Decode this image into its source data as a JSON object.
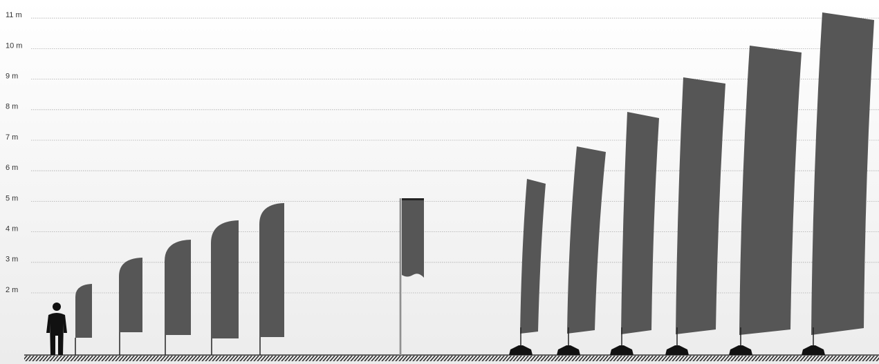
{
  "scale": {
    "ticks": [
      {
        "value": 2,
        "label": "2 m"
      },
      {
        "value": 3,
        "label": "3 m"
      },
      {
        "value": 4,
        "label": "4 m"
      },
      {
        "value": 5,
        "label": "5 m"
      },
      {
        "value": 6,
        "label": "6 m"
      },
      {
        "value": 7,
        "label": "7 m"
      },
      {
        "value": 8,
        "label": "8 m"
      },
      {
        "value": 9,
        "label": "9 m"
      },
      {
        "value": 10,
        "label": "10 m"
      },
      {
        "value": 11,
        "label": "11 m"
      }
    ]
  }
}
